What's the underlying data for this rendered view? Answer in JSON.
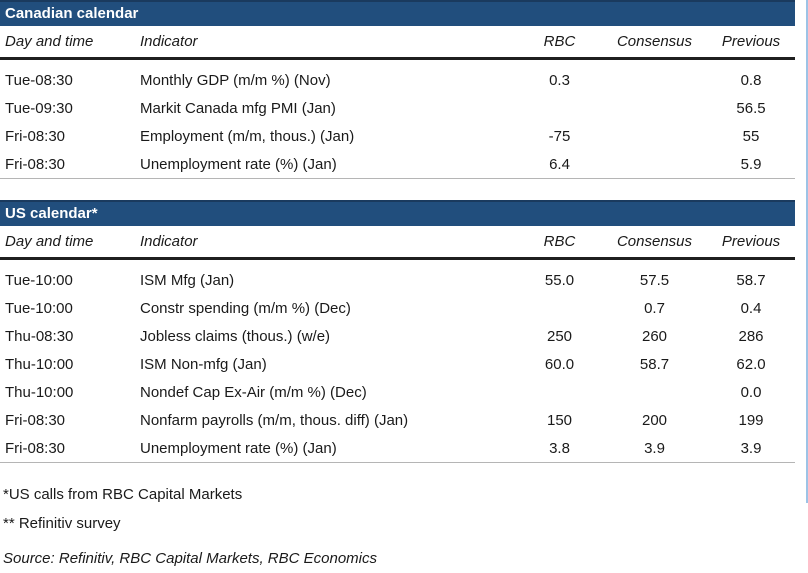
{
  "colors": {
    "header_bar": "#214E7D",
    "header_bar_border": "#1a3a5e",
    "header_text": "#ffffff",
    "body_text": "#1a1a1a",
    "thick_rule": "#1f1f1f",
    "thin_rule": "#b5b5b5",
    "edge_line": "#9DC3E6"
  },
  "columns": {
    "day": "Day and time",
    "indicator": "Indicator",
    "rbc": "RBC",
    "consensus": "Consensus",
    "previous": "Previous"
  },
  "canadian": {
    "title": "Canadian calendar",
    "rows": [
      {
        "day": "Tue-08:30",
        "indicator": "Monthly GDP (m/m %) (Nov)",
        "rbc": "0.3",
        "consensus": "",
        "previous": "0.8"
      },
      {
        "day": "Tue-09:30",
        "indicator": "Markit Canada mfg PMI (Jan)",
        "rbc": "",
        "consensus": "",
        "previous": "56.5"
      },
      {
        "day": "Fri-08:30",
        "indicator": "Employment (m/m, thous.) (Jan)",
        "rbc": "-75",
        "consensus": "",
        "previous": "55"
      },
      {
        "day": "Fri-08:30",
        "indicator": "Unemployment rate (%) (Jan)",
        "rbc": "6.4",
        "consensus": "",
        "previous": "5.9"
      }
    ]
  },
  "us": {
    "title": "US calendar*",
    "rows": [
      {
        "day": "Tue-10:00",
        "indicator": "ISM Mfg (Jan)",
        "rbc": "55.0",
        "consensus": "57.5",
        "previous": "58.7"
      },
      {
        "day": "Tue-10:00",
        "indicator": "Constr spending (m/m %) (Dec)",
        "rbc": "",
        "consensus": "0.7",
        "previous": "0.4"
      },
      {
        "day": "Thu-08:30",
        "indicator": "Jobless claims (thous.) (w/e)",
        "rbc": "250",
        "consensus": "260",
        "previous": "286"
      },
      {
        "day": "Thu-10:00",
        "indicator": "ISM Non-mfg (Jan)",
        "rbc": "60.0",
        "consensus": "58.7",
        "previous": "62.0"
      },
      {
        "day": "Thu-10:00",
        "indicator": "Nondef Cap Ex-Air (m/m %) (Dec)",
        "rbc": "",
        "consensus": "",
        "previous": "0.0"
      },
      {
        "day": "Fri-08:30",
        "indicator": "Nonfarm payrolls (m/m, thous. diff) (Jan)",
        "rbc": "150",
        "consensus": "200",
        "previous": "199"
      },
      {
        "day": "Fri-08:30",
        "indicator": "Unemployment rate (%) (Jan)",
        "rbc": "3.8",
        "consensus": "3.9",
        "previous": "3.9"
      }
    ]
  },
  "footnotes": {
    "us_calls": "*US calls from RBC Capital Markets",
    "refinitiv": "** Refinitiv survey"
  },
  "source": "Source: Refinitiv, RBC Capital Markets, RBC Economics"
}
